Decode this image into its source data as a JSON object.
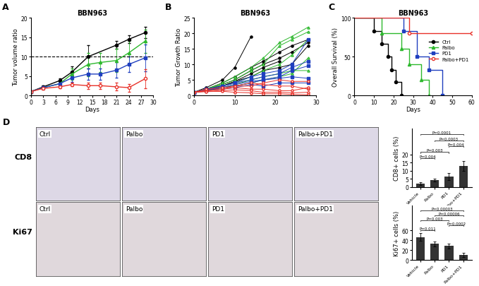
{
  "chart_data": [
    {
      "panel": "A",
      "type": "line",
      "title": "BBN963",
      "x_label": "Days",
      "y_label": "Tumor volume ratio",
      "xlim": [
        0,
        30
      ],
      "xticks": [
        0,
        3,
        6,
        9,
        12,
        15,
        18,
        21,
        24,
        27,
        30
      ],
      "ylim": [
        0,
        20
      ],
      "yticks": [
        0,
        5,
        10,
        15,
        20
      ],
      "threshold": 10,
      "series": [
        {
          "color": "#000000",
          "marker": "circle",
          "x": [
            0,
            3,
            7,
            10,
            14,
            21,
            24,
            28
          ],
          "values": [
            1,
            2.2,
            3.8,
            6,
            10,
            13,
            14.5,
            16.2
          ],
          "errors": [
            0,
            0.3,
            0.5,
            1.5,
            3,
            1,
            1,
            1.5
          ]
        },
        {
          "color": "#2db82d",
          "marker": "triangle",
          "x": [
            0,
            3,
            7,
            10,
            14,
            17,
            21,
            24,
            28
          ],
          "values": [
            1,
            2,
            3,
            5.5,
            8,
            8.5,
            9,
            11,
            14
          ],
          "errors": [
            0,
            0.3,
            0.5,
            1.5,
            3,
            2.5,
            3,
            3,
            3
          ]
        },
        {
          "color": "#1f3fbf",
          "marker": "square",
          "x": [
            0,
            3,
            7,
            10,
            14,
            17,
            21,
            24,
            28
          ],
          "values": [
            1,
            2,
            3,
            4.5,
            5.5,
            5.5,
            6.5,
            8,
            9.7
          ],
          "errors": [
            0,
            0.3,
            0.5,
            1,
            1.5,
            1.5,
            2,
            2,
            3.5
          ]
        },
        {
          "color": "#e8322a",
          "marker": "open_circle",
          "x": [
            0,
            3,
            7,
            10,
            14,
            17,
            21,
            24,
            28
          ],
          "values": [
            1,
            1.8,
            2.2,
            2.8,
            2.5,
            2.5,
            2.2,
            2,
            4.3
          ],
          "errors": [
            0,
            0.3,
            0.4,
            0.5,
            0.8,
            0.8,
            1,
            1,
            2.5
          ]
        }
      ]
    },
    {
      "panel": "B",
      "type": "line",
      "title": "BBN963",
      "y_label": "Tumor Growth Ratio",
      "xlim": [
        0,
        30
      ],
      "xticks": [
        0,
        10,
        20,
        30
      ],
      "ylim": [
        0,
        25
      ],
      "yticks": [
        0,
        5,
        10,
        15,
        20,
        25
      ],
      "series": [
        {
          "color": "#000000",
          "marker": "circle",
          "x": [
            0,
            3,
            7,
            10,
            14
          ],
          "values": [
            1,
            2.5,
            5,
            9,
            19
          ]
        },
        {
          "color": "#000000",
          "marker": "circle",
          "x": [
            0,
            3,
            7,
            10,
            14,
            17,
            21,
            24,
            28
          ],
          "values": [
            1,
            2,
            4,
            6,
            9,
            11,
            14,
            16,
            18
          ]
        },
        {
          "color": "#000000",
          "marker": "circle",
          "x": [
            0,
            3,
            7,
            10,
            14,
            17,
            21,
            24,
            28
          ],
          "values": [
            1,
            1.8,
            3.5,
            5,
            8,
            10,
            12,
            14,
            17
          ]
        },
        {
          "color": "#000000",
          "marker": "circle",
          "x": [
            0,
            3,
            7,
            10,
            14,
            17,
            21
          ],
          "values": [
            1,
            2,
            3,
            4.5,
            7,
            9,
            11
          ]
        },
        {
          "color": "#000000",
          "marker": "circle",
          "x": [
            0,
            3,
            7,
            10,
            14,
            17,
            21,
            24,
            28
          ],
          "values": [
            1,
            1.5,
            3,
            4.5,
            6,
            8,
            9,
            10,
            16
          ]
        },
        {
          "color": "#2db82d",
          "marker": "open_triangle",
          "x": [
            0,
            3,
            7,
            10,
            14,
            17,
            21,
            24,
            28
          ],
          "values": [
            1,
            2,
            4,
            6,
            9,
            12,
            17,
            19,
            22
          ]
        },
        {
          "color": "#2db82d",
          "marker": "open_triangle",
          "x": [
            0,
            3,
            7,
            10,
            14,
            17,
            21,
            24,
            28
          ],
          "values": [
            1,
            2,
            3.5,
            5,
            8,
            10,
            16,
            18,
            20.5
          ]
        },
        {
          "color": "#2db82d",
          "marker": "open_triangle",
          "x": [
            0,
            3,
            7,
            10,
            14,
            17,
            21,
            24,
            28
          ],
          "values": [
            1,
            1.8,
            3,
            4,
            6,
            8,
            10,
            13,
            18
          ]
        },
        {
          "color": "#2db82d",
          "marker": "open_triangle",
          "x": [
            0,
            3,
            7,
            10,
            14,
            17,
            21,
            24,
            28
          ],
          "values": [
            1,
            1.5,
            2.5,
            3.5,
            5,
            6,
            7,
            8,
            8
          ]
        },
        {
          "color": "#2db82d",
          "marker": "open_triangle",
          "x": [
            0,
            3,
            7,
            10,
            14,
            17,
            21,
            24,
            28
          ],
          "values": [
            1,
            1.5,
            2.5,
            3,
            4,
            5,
            6,
            7,
            12
          ]
        },
        {
          "color": "#1f3fbf",
          "marker": "square",
          "x": [
            0,
            3,
            7,
            10,
            14,
            17,
            21,
            24,
            28
          ],
          "values": [
            1,
            2,
            3,
            4,
            6,
            7,
            8,
            10,
            18
          ]
        },
        {
          "color": "#1f3fbf",
          "marker": "square",
          "x": [
            0,
            3,
            7,
            10,
            14,
            17,
            21,
            24,
            28
          ],
          "values": [
            1,
            2,
            3,
            4,
            5,
            6,
            7,
            9,
            11
          ]
        },
        {
          "color": "#1f3fbf",
          "marker": "square",
          "x": [
            0,
            3,
            7,
            10,
            14,
            17,
            21,
            24,
            28
          ],
          "values": [
            1,
            1.5,
            2.5,
            3.5,
            4.5,
            5,
            6,
            8,
            9.5
          ]
        },
        {
          "color": "#1f3fbf",
          "marker": "square",
          "x": [
            0,
            3,
            7,
            10,
            14,
            17,
            21,
            24,
            28
          ],
          "values": [
            1,
            1.8,
            2.5,
            3,
            4,
            5,
            5.5,
            6,
            5.5
          ]
        },
        {
          "color": "#1f3fbf",
          "marker": "square",
          "x": [
            0,
            3,
            7,
            10,
            14,
            17,
            21,
            24,
            28
          ],
          "values": [
            1,
            1.5,
            2,
            2.5,
            3.5,
            3,
            4,
            4,
            4
          ]
        },
        {
          "color": "#e8322a",
          "marker": "open_circle",
          "x": [
            0,
            3,
            7,
            10,
            14,
            17,
            21,
            24,
            28
          ],
          "values": [
            1,
            1.5,
            2,
            3,
            4,
            3.5,
            3,
            3,
            2
          ]
        },
        {
          "color": "#e8322a",
          "marker": "open_circle",
          "x": [
            0,
            3,
            7,
            10,
            14,
            17,
            21,
            24,
            28
          ],
          "values": [
            1,
            1.5,
            2,
            2.5,
            2,
            2,
            1.5,
            1.5,
            2.5
          ]
        },
        {
          "color": "#e8322a",
          "marker": "open_circle",
          "x": [
            0,
            3,
            7,
            10,
            14,
            17,
            21,
            24,
            28
          ],
          "values": [
            1,
            1.3,
            1.5,
            1.8,
            1.5,
            1,
            1,
            0.8,
            1
          ]
        },
        {
          "color": "#e8322a",
          "marker": "open_circle",
          "x": [
            0,
            3,
            7,
            10,
            14,
            17,
            21,
            24,
            28
          ],
          "values": [
            1,
            1.2,
            1.3,
            1,
            0.8,
            0.5,
            0.5,
            0.3,
            0.2
          ]
        },
        {
          "color": "#e8322a",
          "marker": "open_circle",
          "x": [
            0,
            3,
            7,
            10,
            14,
            17,
            21,
            24,
            28
          ],
          "values": [
            1,
            2,
            2.5,
            3,
            3,
            4,
            5,
            4.5,
            4.5
          ]
        }
      ]
    },
    {
      "panel": "C",
      "type": "step",
      "title": "BBN963",
      "x_label": "Days",
      "y_label": "Overall Survival (%)",
      "xlim": [
        0,
        60
      ],
      "xticks": [
        0,
        10,
        20,
        30,
        40,
        50,
        60
      ],
      "ylim": [
        0,
        100
      ],
      "yticks": [
        0,
        50,
        100
      ],
      "legend": "center right",
      "series": [
        {
          "name": "Ctrl",
          "color": "#000000",
          "marker": "circle",
          "x": [
            0,
            10,
            14,
            17,
            19,
            21,
            24
          ],
          "values": [
            100,
            83,
            67,
            50,
            33,
            17,
            0
          ]
        },
        {
          "name": "Palbo",
          "color": "#2db82d",
          "marker": "triangle",
          "x": [
            0,
            14,
            24,
            28,
            34,
            38
          ],
          "values": [
            100,
            80,
            60,
            40,
            20,
            0
          ]
        },
        {
          "name": "PD1",
          "color": "#1f3fbf",
          "marker": "square",
          "x": [
            0,
            25,
            32,
            38,
            45
          ],
          "values": [
            100,
            83,
            50,
            33,
            0
          ]
        },
        {
          "name": "Palbo+PD1",
          "color": "#e8322a",
          "marker": "open_circle",
          "x": [
            0,
            28,
            60
          ],
          "values": [
            100,
            80,
            80
          ]
        }
      ]
    },
    {
      "type": "bar",
      "y_label": "CD8+ cells (%)",
      "categories": [
        "Vehicle",
        "Palbo",
        "PD1",
        "Palbo+PD1"
      ],
      "values": [
        2.2,
        4.3,
        6.5,
        13
      ],
      "errors": [
        0.8,
        1,
        2,
        3
      ],
      "color": "#333333",
      "ylim": [
        0,
        36
      ],
      "yticks": [
        0,
        5,
        10,
        15,
        20
      ],
      "comparisons": [
        {
          "pair": [
            "Vehicle",
            "Palbo"
          ],
          "label": "P=0.004"
        },
        {
          "pair": [
            "Vehicle",
            "PD1"
          ],
          "label": "P=0.003"
        },
        {
          "pair": [
            "PD1",
            "Palbo+PD1"
          ],
          "label": "P=0.004"
        },
        {
          "pair": [
            "Palbo",
            "Palbo+PD1"
          ],
          "label": "P=0.0003"
        },
        {
          "pair": [
            "Vehicle",
            "Palbo+PD1"
          ],
          "label": "P=0.0001"
        }
      ]
    },
    {
      "type": "bar",
      "y_label": "Ki67+ cells (%)",
      "categories": [
        "Vehicle",
        "Palbo",
        "PD1",
        "Palbo+PD1"
      ],
      "values": [
        47,
        33,
        29,
        11
      ],
      "errors": [
        8,
        5,
        5,
        4
      ],
      "color": "#333333",
      "ylim": [
        0,
        110
      ],
      "yticks": [
        0,
        20,
        40,
        60
      ],
      "comparisons": [
        {
          "pair": [
            "Vehicle",
            "Palbo"
          ],
          "label": "P=0.011"
        },
        {
          "pair": [
            "PD1",
            "Palbo+PD1"
          ],
          "label": "P=0.0002"
        },
        {
          "pair": [
            "Vehicle",
            "PD1"
          ],
          "label": "P=0.003"
        },
        {
          "pair": [
            "Palbo",
            "Palbo+PD1"
          ],
          "label": "P=0.00006"
        },
        {
          "pair": [
            "Vehicle",
            "Palbo+PD1"
          ],
          "label": "P=0.00003"
        }
      ]
    }
  ],
  "micrographs": {
    "panel": "D",
    "columns": [
      "Ctrl",
      "Palbo",
      "PD1",
      "Palbo+PD1"
    ],
    "rows": [
      "CD8",
      "Ki67"
    ]
  }
}
